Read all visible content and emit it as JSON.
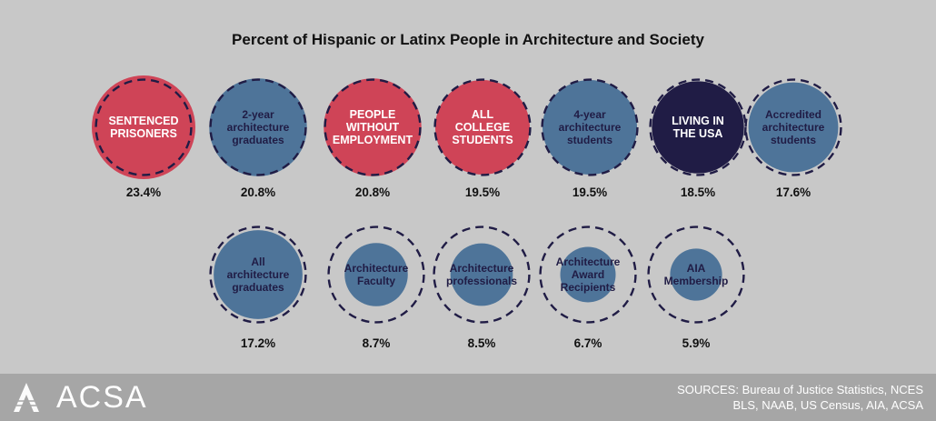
{
  "chart_data": {
    "type": "bubble",
    "title": "Percent of Hispanic or Latinx People in Architecture and Society",
    "reference_value": 23.4,
    "colors": {
      "red": "#cf4457",
      "blue": "#4e7499",
      "navy": "#201c45",
      "dashed_outline": "#201c45"
    },
    "items": [
      {
        "label": [
          "SENTENCED",
          "PRISONERS"
        ],
        "value": 23.4,
        "value_label": "23.4%",
        "color": "red",
        "bold_caps": true
      },
      {
        "label": [
          "2-year",
          "architecture",
          "graduates"
        ],
        "value": 20.8,
        "value_label": "20.8%",
        "color": "blue",
        "bold_caps": false
      },
      {
        "label": [
          "PEOPLE",
          "WITHOUT",
          "EMPLOYMENT"
        ],
        "value": 20.8,
        "value_label": "20.8%",
        "color": "red",
        "bold_caps": true
      },
      {
        "label": [
          "ALL",
          "COLLEGE",
          "STUDENTS"
        ],
        "value": 19.5,
        "value_label": "19.5%",
        "color": "red",
        "bold_caps": true
      },
      {
        "label": [
          "4-year",
          "architecture",
          "students"
        ],
        "value": 19.5,
        "value_label": "19.5%",
        "color": "blue",
        "bold_caps": false
      },
      {
        "label": [
          "LIVING IN",
          "THE USA"
        ],
        "value": 18.5,
        "value_label": "18.5%",
        "color": "navy",
        "bold_caps": true
      },
      {
        "label": [
          "Accredited",
          "architecture",
          "students"
        ],
        "value": 17.6,
        "value_label": "17.6%",
        "color": "blue",
        "bold_caps": false
      },
      {
        "label": [
          "All",
          "architecture",
          "graduates"
        ],
        "value": 17.2,
        "value_label": "17.2%",
        "color": "blue",
        "bold_caps": false
      },
      {
        "label": [
          "Architecture",
          "Faculty"
        ],
        "value": 8.7,
        "value_label": "8.7%",
        "color": "blue",
        "bold_caps": false
      },
      {
        "label": [
          "Architecture",
          "professionals"
        ],
        "value": 8.5,
        "value_label": "8.5%",
        "color": "blue",
        "bold_caps": false
      },
      {
        "label": [
          "Architecture",
          "Award",
          "Recipients"
        ],
        "value": 6.7,
        "value_label": "6.7%",
        "color": "blue",
        "bold_caps": false
      },
      {
        "label": [
          "AIA",
          "Membership"
        ],
        "value": 5.9,
        "value_label": "5.9%",
        "color": "blue",
        "bold_caps": false
      }
    ]
  },
  "footer": {
    "logo_text": "ACSA",
    "sources_line1": "SOURCES: Bureau of Justice Statistics, NCES",
    "sources_line2": "BLS, NAAB, US Census, AIA, ACSA"
  }
}
